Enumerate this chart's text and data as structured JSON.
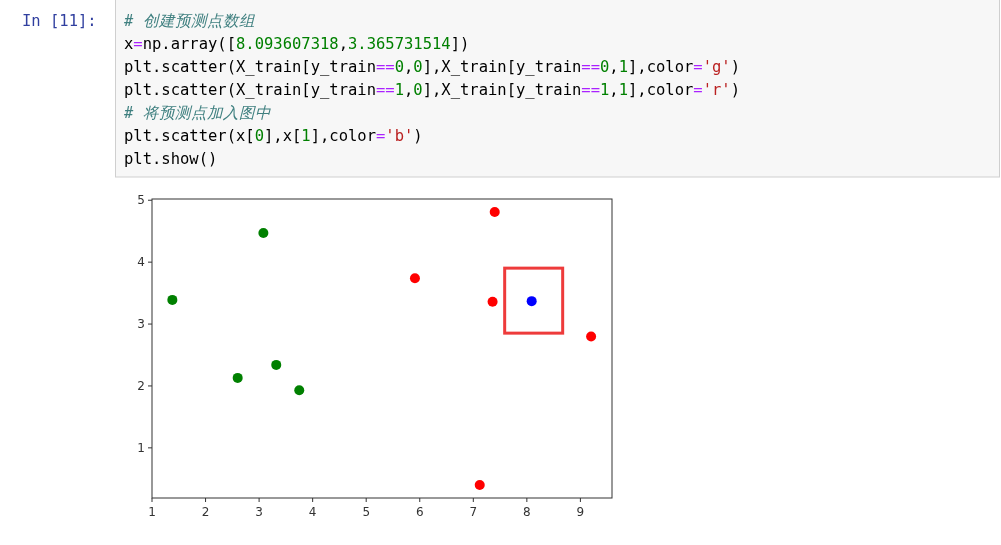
{
  "chart_data": {
    "type": "scatter",
    "marker": "circle",
    "xlim": [
      1,
      9.59
    ],
    "ylim": [
      0.19,
      5.02
    ],
    "xticks": [
      1,
      2,
      3,
      4,
      5,
      6,
      7,
      8,
      9
    ],
    "yticks": [
      1,
      2,
      3,
      4,
      5
    ],
    "series": [
      {
        "color": "#008000",
        "x": [
          1.38,
          3.08,
          2.6,
          3.32,
          3.75
        ],
        "values": [
          3.39,
          4.47,
          2.13,
          2.34,
          1.93
        ]
      },
      {
        "color": "#ff0000",
        "x": [
          7.4,
          5.91,
          7.36,
          9.2,
          7.12
        ],
        "values": [
          4.81,
          3.74,
          3.36,
          2.8,
          0.4
        ]
      },
      {
        "color": "#0000ff",
        "x": [
          8.09
        ],
        "values": [
          3.37
        ]
      }
    ],
    "annotations": [
      "In [11]:",
      "# 创建预测点数组",
      "x=np.array([8.093607318,3.365731514])",
      "plt.scatter(X_train[y_train==0,0],X_train[y_train==0,1],color='g')",
      "plt.scatter(X_train[y_train==1,0],X_train[y_train==1,1],color='r')",
      "# 将预测点加入图中",
      "plt.scatter(x[0],x[1],color='b')",
      "plt.show()"
    ]
  }
}
